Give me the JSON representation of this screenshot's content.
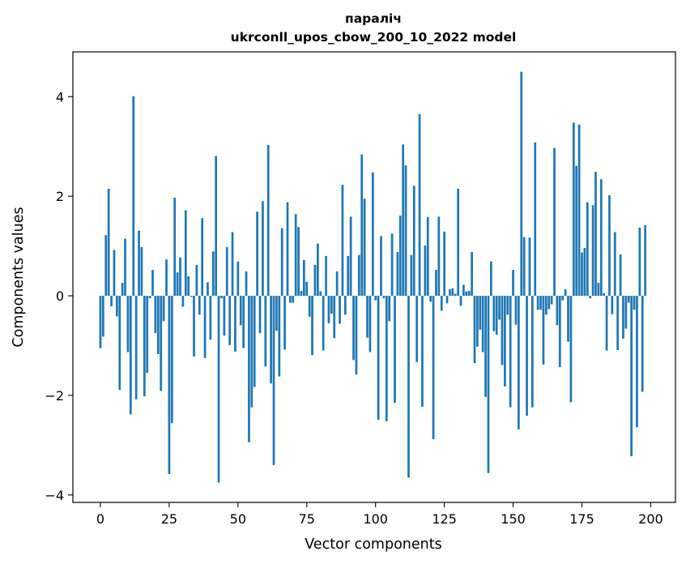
{
  "chart_data": {
    "type": "bar",
    "title_line1": "параліч",
    "title_line2": "ukrconll_upos_cbow_200_10_2022 model",
    "xlabel": "Vector components",
    "ylabel": "Components values",
    "xlim": [
      -10,
      209
    ],
    "ylim": [
      -4.15,
      4.9
    ],
    "x_ticks": [
      {
        "value": 0,
        "label": "0"
      },
      {
        "value": 25,
        "label": "25"
      },
      {
        "value": 50,
        "label": "50"
      },
      {
        "value": 75,
        "label": "75"
      },
      {
        "value": 100,
        "label": "100"
      },
      {
        "value": 125,
        "label": "125"
      },
      {
        "value": 150,
        "label": "150"
      },
      {
        "value": 175,
        "label": "175"
      },
      {
        "value": 200,
        "label": "200"
      }
    ],
    "y_ticks": [
      {
        "value": -4,
        "label": "−4"
      },
      {
        "value": -2,
        "label": "−2"
      },
      {
        "value": 0,
        "label": "0"
      },
      {
        "value": 2,
        "label": "2"
      },
      {
        "value": 4,
        "label": "4"
      }
    ],
    "grid": false,
    "bar_color": "#1f77b4",
    "values": [
      -1.05,
      -0.82,
      1.22,
      2.15,
      -0.21,
      0.92,
      -0.41,
      -1.89,
      0.26,
      1.15,
      -1.13,
      -2.38,
      4.01,
      -2.08,
      1.31,
      0.98,
      -2.02,
      -1.55,
      -0.05,
      0.52,
      -0.75,
      -1.17,
      -1.91,
      -0.51,
      0.73,
      -3.58,
      -2.56,
      1.97,
      0.47,
      0.77,
      -0.22,
      1.72,
      0.39,
      -0.02,
      -1.22,
      0.62,
      -0.38,
      1.56,
      -1.25,
      0.27,
      -0.88,
      0.89,
      2.81,
      -3.75,
      -0.05,
      -0.8,
      0.98,
      -0.99,
      1.28,
      -1.12,
      0.69,
      -0.59,
      -1.05,
      0.49,
      -2.94,
      -2.24,
      -1.83,
      1.69,
      -0.75,
      1.9,
      -1.42,
      3.03,
      -1.76,
      -3.4,
      -0.7,
      -1.62,
      1.36,
      -1.08,
      1.88,
      -0.14,
      -0.14,
      1.64,
      1.38,
      0.1,
      0.72,
      0.28,
      -0.42,
      -1.19,
      0.62,
      1.05,
      0.09,
      -1.1,
      0.8,
      -0.55,
      -0.36,
      -0.85,
      0.49,
      -0.56,
      2.23,
      -0.38,
      0.8,
      1.59,
      -1.29,
      -1.58,
      0.82,
      2.84,
      1.95,
      -0.84,
      -1.13,
      2.48,
      -0.09,
      -2.49,
      1.2,
      -0.05,
      -2.52,
      -0.51,
      1.25,
      -2.15,
      0.88,
      1.61,
      3.04,
      2.62,
      -3.65,
      0.82,
      2.21,
      -1.33,
      3.65,
      -2.23,
      1.01,
      1.58,
      -0.12,
      -2.88,
      0.52,
      1.59,
      -0.3,
      1.29,
      -0.15,
      0.13,
      0.15,
      0.04,
      2.15,
      -0.2,
      0.22,
      0.09,
      0.1,
      0.88,
      -1.35,
      -1.02,
      -0.68,
      -1.13,
      -2.03,
      -3.56,
      0.69,
      -0.71,
      -0.78,
      -0.48,
      -1.39,
      -1.82,
      -0.38,
      -2.24,
      0.52,
      -0.58,
      -2.68,
      4.5,
      1.18,
      -2.41,
      1.17,
      -2.24,
      3.08,
      -0.28,
      -0.28,
      -1.38,
      -0.38,
      -0.27,
      -0.17,
      2.97,
      -0.59,
      -1.43,
      -0.09,
      0.13,
      -0.92,
      -2.14,
      3.48,
      2.61,
      3.44,
      0.87,
      0.96,
      1.88,
      -0.05,
      1.82,
      2.49,
      0.26,
      2.34,
      0.05,
      -1.1,
      2.02,
      -0.37,
      1.28,
      -1.09,
      0.83,
      -0.86,
      -0.66,
      -0.14,
      -3.22,
      -0.28,
      -2.64,
      1.37,
      -1.93,
      1.42
    ]
  }
}
